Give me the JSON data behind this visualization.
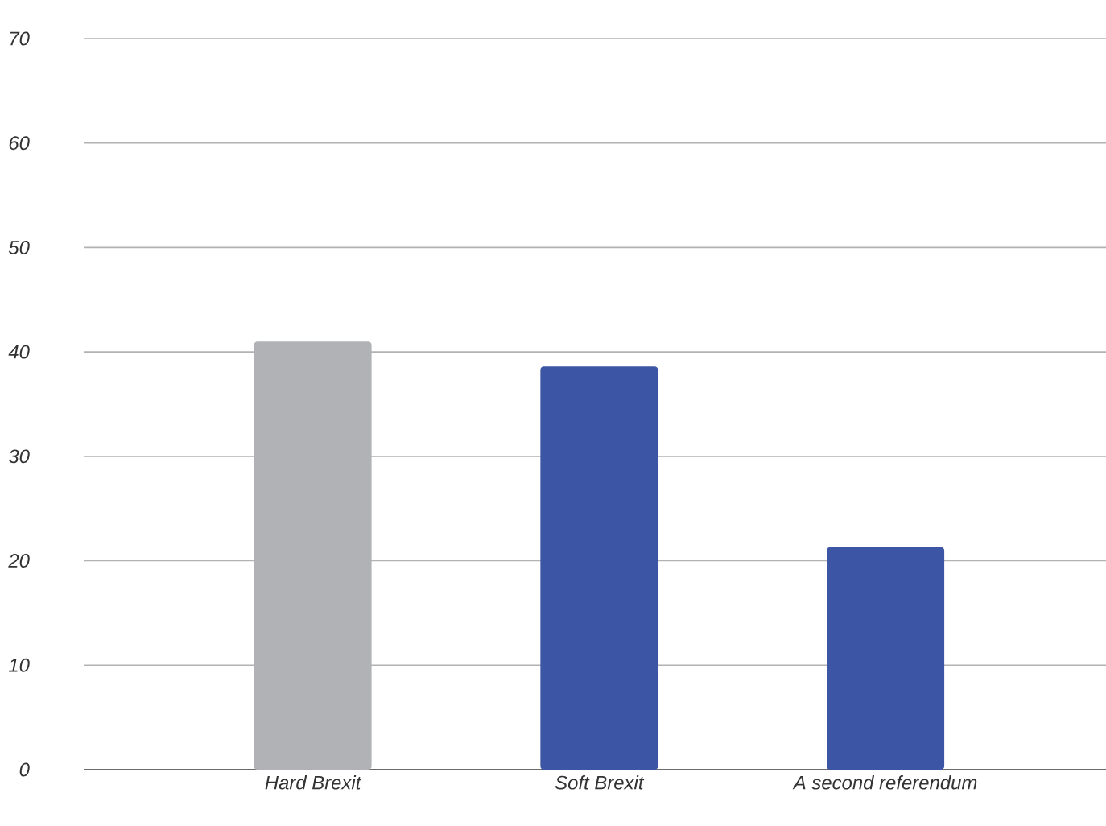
{
  "chart_data": {
    "type": "bar",
    "categories": [
      "Hard Brexit",
      "Soft Brexit",
      "A second referendum"
    ],
    "values": [
      41.0,
      38.6,
      21.3
    ],
    "colors": [
      "#b1b2b6",
      "#3c56a5",
      "#3c56a5"
    ],
    "ylim": [
      0,
      70
    ],
    "yticks": [
      0,
      10,
      20,
      30,
      40,
      50,
      60,
      70
    ],
    "grid": "y"
  }
}
